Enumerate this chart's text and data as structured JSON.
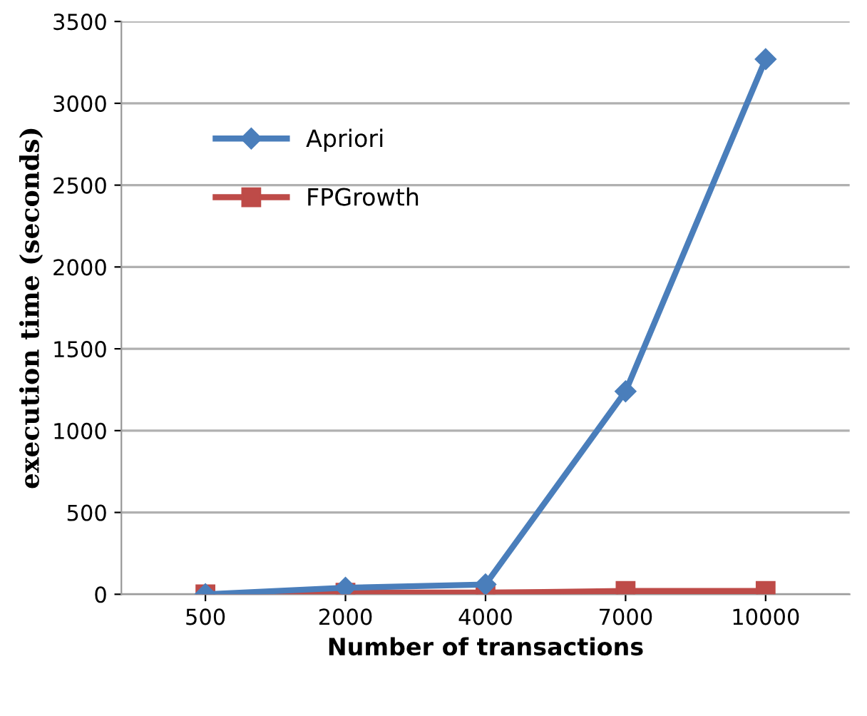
{
  "chart_data": {
    "type": "line",
    "xlabel": "Number of transactions",
    "ylabel": "execution time (seconds)",
    "categories": [
      "500",
      "2000",
      "4000",
      "7000",
      "10000"
    ],
    "series": [
      {
        "name": "Apriori",
        "color": "#4a7ebb",
        "marker": "diamond",
        "values": [
          0,
          40,
          60,
          1240,
          3270
        ]
      },
      {
        "name": "FPGrowth",
        "color": "#be4b48",
        "marker": "square",
        "values": [
          0,
          10,
          10,
          20,
          20
        ]
      }
    ],
    "ylim": [
      0,
      3500
    ],
    "yticks": [
      0,
      500,
      1000,
      1500,
      2000,
      2500,
      3000,
      3500
    ],
    "grid": "y",
    "legend": "top left",
    "line_style": "solid"
  }
}
